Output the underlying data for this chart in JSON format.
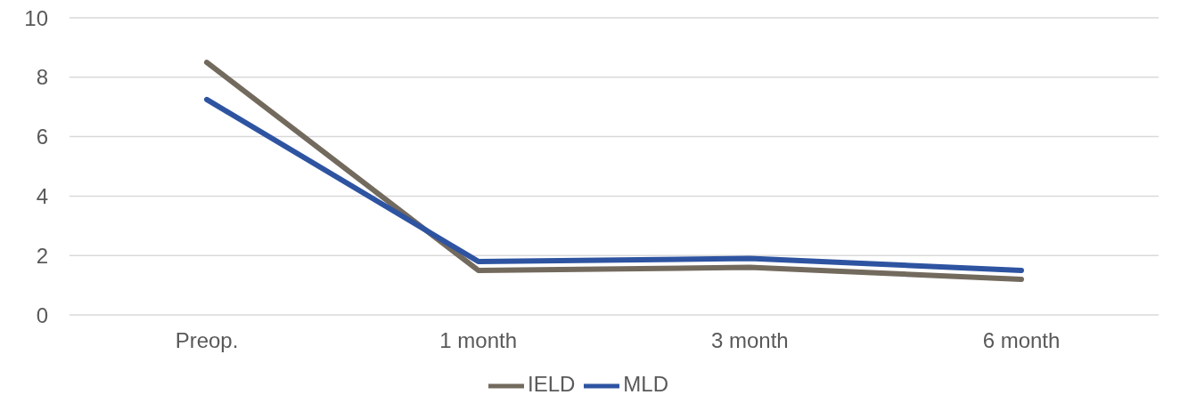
{
  "chart_data": {
    "type": "line",
    "categories": [
      "Preop.",
      "1 month",
      "3 month",
      "6 month"
    ],
    "series": [
      {
        "name": "IELD",
        "color": "#736a5e",
        "values": [
          8.5,
          1.5,
          1.6,
          1.2
        ]
      },
      {
        "name": "MLD",
        "color": "#2e54a1",
        "values": [
          7.25,
          1.8,
          1.9,
          1.5
        ]
      }
    ],
    "ylim": [
      0,
      10
    ],
    "yticks": [
      0,
      2,
      4,
      6,
      8,
      10
    ],
    "grid": "y",
    "legend": "bottom",
    "marker": "none",
    "line_style": "solid"
  }
}
